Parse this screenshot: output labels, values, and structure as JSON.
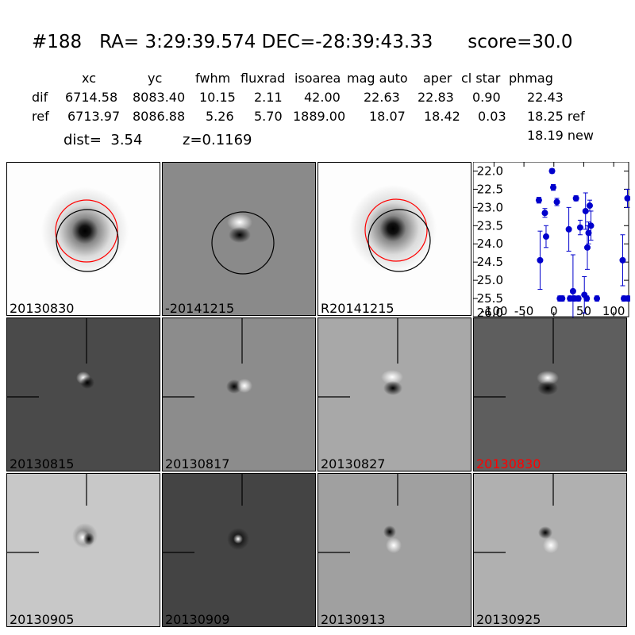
{
  "header": {
    "title": "#188   RA= 3:29:39.574 DEC=-28:39:43.33      score=30.0",
    "columns": [
      "xc",
      "yc",
      "fwhm",
      "fluxrad",
      "isoarea",
      "mag auto",
      "aper",
      "cl star",
      "phmag"
    ],
    "dif": {
      "label": "dif",
      "values": [
        "6714.58",
        "8083.40",
        "10.15",
        "2.11",
        "42.00",
        "22.63",
        "22.83",
        "0.90",
        "22.43"
      ]
    },
    "ref": {
      "label": "ref",
      "values": [
        "6713.97",
        "8086.88",
        "5.26",
        "5.70",
        "1889.00",
        "18.07",
        "18.42",
        "0.03",
        "18.25 ref"
      ]
    },
    "new_phmag": "18.19 new",
    "dist": "dist=  3.54",
    "z": "z=0.1169"
  },
  "panels": {
    "top": [
      "20130830",
      "-20141215",
      "R20141215"
    ],
    "row2": [
      "20130815",
      "20130817",
      "20130827",
      "20130830"
    ],
    "row3": [
      "20130905",
      "20130909",
      "20130913",
      "20130925"
    ]
  },
  "colors": {
    "highlight_label": "#ff0000",
    "points": "#0000cc",
    "ref_circle": "#ff0000"
  },
  "chart_data": {
    "type": "scatter",
    "title": "",
    "xlabel": "",
    "ylabel": "",
    "xlim": [
      -135,
      125
    ],
    "ylim": [
      26.0,
      21.75
    ],
    "y_inverted": true,
    "xticks": [
      "-100",
      "-50",
      "0",
      "50",
      "100"
    ],
    "xtick_values": [
      -100,
      -50,
      0,
      50,
      100
    ],
    "yticks": [
      "22.0",
      "22.5",
      "23.0",
      "23.5",
      "24.0",
      "24.5",
      "25.0",
      "25.5",
      "26.0"
    ],
    "ytick_values": [
      22.0,
      22.5,
      23.0,
      23.5,
      24.0,
      24.5,
      25.0,
      25.5,
      26.0
    ],
    "points": [
      {
        "x": -25,
        "y": 22.8,
        "err": 0.08
      },
      {
        "x": -23,
        "y": 24.45,
        "err": 0.8
      },
      {
        "x": -15,
        "y": 23.15,
        "err": 0.12
      },
      {
        "x": -13,
        "y": 23.8,
        "err": 0.3
      },
      {
        "x": -3,
        "y": 22.0,
        "err": 0.06
      },
      {
        "x": -1,
        "y": 22.45,
        "err": 0.08
      },
      {
        "x": 5,
        "y": 22.85,
        "err": 0.1
      },
      {
        "x": 10,
        "y": 25.5,
        "err": 0.07
      },
      {
        "x": 14,
        "y": 25.5,
        "err": 0.07
      },
      {
        "x": 25,
        "y": 23.6,
        "err": 0.6
      },
      {
        "x": 27,
        "y": 25.5,
        "err": 0.07
      },
      {
        "x": 32,
        "y": 25.3,
        "err": 1.0
      },
      {
        "x": 34,
        "y": 25.5,
        "err": 0.07
      },
      {
        "x": 37,
        "y": 22.75,
        "err": 0.07
      },
      {
        "x": 41,
        "y": 25.5,
        "err": 0.07
      },
      {
        "x": 44,
        "y": 23.55,
        "err": 0.2
      },
      {
        "x": 51,
        "y": 25.4,
        "err": 0.5
      },
      {
        "x": 53,
        "y": 23.1,
        "err": 0.5
      },
      {
        "x": 55,
        "y": 25.5,
        "err": 0.07
      },
      {
        "x": 56,
        "y": 24.1,
        "err": 0.6
      },
      {
        "x": 58,
        "y": 23.7,
        "err": 0.3
      },
      {
        "x": 60,
        "y": 22.95,
        "err": 0.15
      },
      {
        "x": 62,
        "y": 23.5,
        "err": 0.4
      },
      {
        "x": 72,
        "y": 25.5,
        "err": 0.07
      },
      {
        "x": 115,
        "y": 24.45,
        "err": 0.7
      },
      {
        "x": 117,
        "y": 25.5,
        "err": 0.07
      },
      {
        "x": 123,
        "y": 22.75,
        "err": 0.25
      },
      {
        "x": 124,
        "y": 25.5,
        "err": 0.07
      }
    ]
  }
}
